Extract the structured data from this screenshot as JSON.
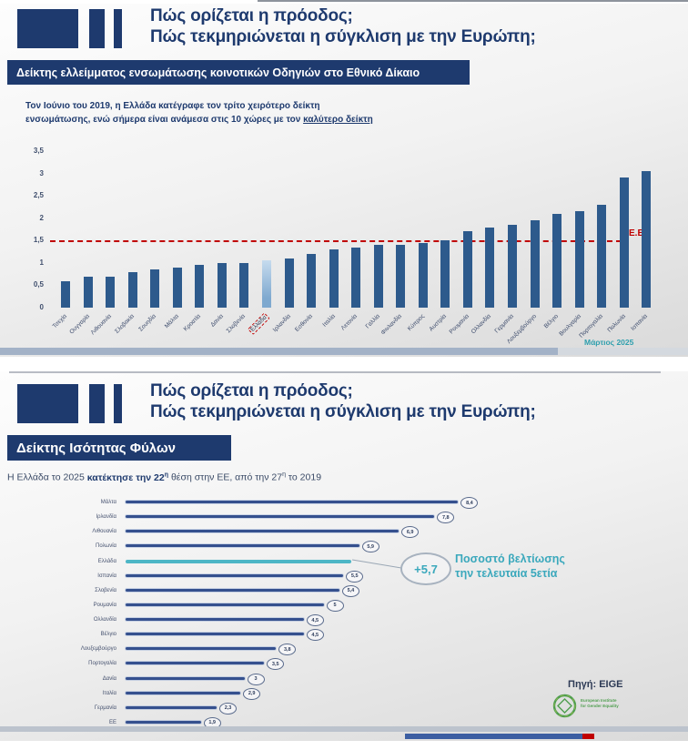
{
  "slide1": {
    "title_line1": "Πώς ορίζεται η πρόοδος;",
    "title_line2": "Πώς τεκμηριώνεται η σύγκλιση με την Ευρώπη;",
    "banner": "Δείκτης ελλείμματος ενσωμάτωσης κοινοτικών Οδηγιών στο Εθνικό Δίκαιο",
    "subtitle_line1": "Τον Ιούνιο του 2019, η Ελλάδα κατέγραφε τον τρίτο χειρότερο δείκτη",
    "subtitle_line2_plain": "ενσωμάτωσης, ενώ σήμερα είναι ανάμεσα στις 10 χώρες με τον ",
    "subtitle_line2_underlined": "καλύτερο δείκτη",
    "eu_line_label": "Ε.Ε.",
    "footnote": "Μάρτιος 2025"
  },
  "slide2": {
    "title_line1": "Πώς ορίζεται η πρόοδος;",
    "title_line2": "Πώς τεκμηριώνεται η σύγκλιση με την Ευρώπη;",
    "banner": "Δείκτης Ισότητας Φύλων",
    "subtitle": {
      "part1": "Η Ελλάδα το 2025 ",
      "bold_text": "κατέκτησε την 22",
      "bold_sup": "η",
      "part2": " θέση στην ΕΕ, από την 27",
      "sup2": "η",
      "part3": " το 2019"
    },
    "annotation": {
      "value": "+5,7",
      "line1": "Ποσοστό βελτίωσης",
      "line2": "την τελευταία 5ετία"
    },
    "source_label": "Πηγή: EIGE",
    "logo_text_line1": "European Institute",
    "logo_text_line2": "for Gender Equality"
  },
  "colors": {
    "navy": "#1e3a6e",
    "bar": "#2d5a8c",
    "highlight_bar": "#8fb6da",
    "reference_red": "#c00000",
    "teal": "#3aa8bc",
    "eige_green": "#4f9e4f"
  },
  "chart_data": [
    {
      "type": "bar",
      "title": "Δείκτης ελλείμματος ενσωμάτωσης κοινοτικών Οδηγιών στο Εθνικό Δίκαιο",
      "categories": [
        "Τσεχία",
        "Ουγγαρία",
        "Λιθουανία",
        "Σλοβακία",
        "Σουηδία",
        "Μάλτα",
        "Κροατία",
        "Δανία",
        "Σλοβενία",
        "Ελλάδα",
        "Ιρλανδία",
        "Εσθονία",
        "Ιταλία",
        "Λετονία",
        "Γαλλία",
        "Φινλανδία",
        "Κύπρος",
        "Αυστρία",
        "Ρουμανία",
        "Ολλανδία",
        "Γερμανία",
        "Λουξεμβούργο",
        "Βέλγιο",
        "Βουλγαρία",
        "Πορτογαλία",
        "Πολωνία",
        "Ισπανία"
      ],
      "values": [
        0.6,
        0.7,
        0.7,
        0.8,
        0.85,
        0.9,
        0.95,
        1.0,
        1.0,
        1.05,
        1.1,
        1.2,
        1.3,
        1.35,
        1.4,
        1.4,
        1.45,
        1.5,
        1.7,
        1.8,
        1.85,
        1.95,
        2.1,
        2.15,
        2.3,
        2.9,
        3.05
      ],
      "highlight_category": "Ελλάδα",
      "highlight_index": 9,
      "ylim": [
        0,
        3.5
      ],
      "yticks": [
        "0",
        "0,5",
        "1",
        "1,5",
        "2",
        "2,5",
        "3",
        "3,5"
      ],
      "reference_line": {
        "label": "Ε.Ε.",
        "value": 1.5,
        "color": "#c00000",
        "style": "dashed"
      },
      "legend": "none",
      "grid": "off"
    },
    {
      "type": "bar",
      "orientation": "horizontal",
      "title": "Δείκτης Ισότητας Φύλων — Ποσοστό βελτίωσης την τελευταία 5ετία",
      "categories": [
        "Μάλτα",
        "Ιρλανδία",
        "Λιθουανία",
        "Πολωνία",
        "Ελλάδα",
        "Ισπανία",
        "Σλοβενία",
        "Ρουμανία",
        "Ολλανδία",
        "Βέλγιο",
        "Λουξεμβούργο",
        "Πορτογαλία",
        "Δανία",
        "Ιταλία",
        "Γερμανία",
        "ΕΕ"
      ],
      "values": [
        8.4,
        7.8,
        6.9,
        5.9,
        5.7,
        5.5,
        5.4,
        5.0,
        4.5,
        4.5,
        3.8,
        3.5,
        3.0,
        2.9,
        2.3,
        1.9
      ],
      "value_labels": [
        "8,4",
        "7,8",
        "6,9",
        "5,9",
        "+5,7",
        "5,5",
        "5,4",
        "5",
        "4,5",
        "4,5",
        "3,8",
        "3,5",
        "3",
        "2,9",
        "2,3",
        "1,9"
      ],
      "highlight_category": "Ελλάδα",
      "highlight_index": 4,
      "xlim": [
        0,
        8.4
      ],
      "legend": "none",
      "grid": "off"
    }
  ]
}
